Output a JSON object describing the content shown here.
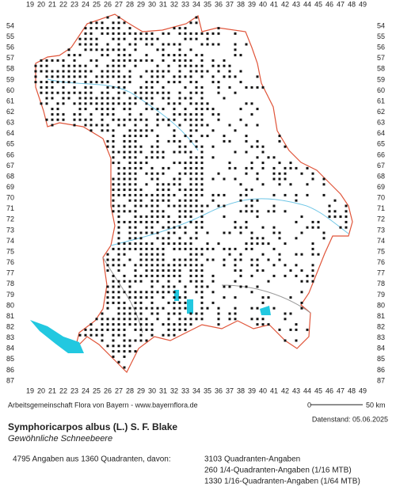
{
  "map": {
    "columns": [
      19,
      20,
      21,
      22,
      23,
      24,
      25,
      26,
      27,
      28,
      29,
      30,
      31,
      32,
      33,
      34,
      35,
      36,
      37,
      38,
      39,
      40,
      41,
      42,
      43,
      44,
      45,
      46,
      47,
      48,
      49
    ],
    "rows": [
      54,
      55,
      56,
      57,
      58,
      59,
      60,
      61,
      62,
      63,
      64,
      65,
      66,
      67,
      68,
      69,
      70,
      71,
      72,
      73,
      74,
      75,
      76,
      77,
      78,
      79,
      80,
      81,
      82,
      83,
      84,
      85,
      86,
      87
    ],
    "credit": "Arbeitsgemeinschaft Flora von Bayern - www.bayernflora.de",
    "scale_start": "0",
    "scale_end": "50 km",
    "date": "Datenstand: 05.06.2025",
    "species": "Symphoricarpos albus (L.) S. F. Blake",
    "common_name": "Gewöhnliche Schneebeere",
    "summary": "4795 Angaben aus 1360 Quadranten, davon:",
    "counts": [
      "3103 Quadranten-Angaben",
      "260 1/4-Quadranten-Angaben (1/16 MTB)",
      "1330 1/16-Quadranten-Angaben (1/64 MTB)"
    ]
  }
}
